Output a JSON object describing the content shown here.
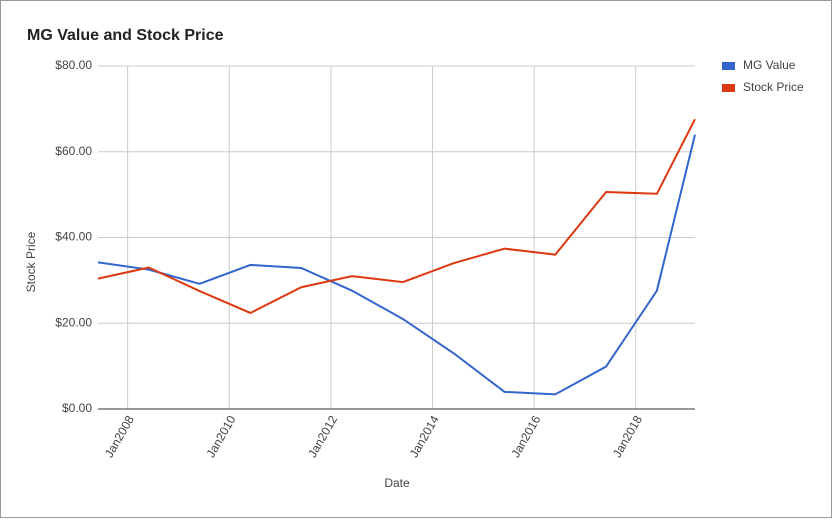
{
  "chart_data": {
    "type": "line",
    "title": "MG Value and Stock Price",
    "x_label": "Date",
    "y_label": "Stock Price",
    "x": [
      "2007-06",
      "2008-06",
      "2009-06",
      "2010-06",
      "2011-06",
      "2012-06",
      "2013-06",
      "2014-06",
      "2015-06",
      "2016-06",
      "2017-06",
      "2018-06",
      "2019-03"
    ],
    "series": [
      {
        "name": "MG Value",
        "color": "#3366cc",
        "values": [
          34.2,
          32.5,
          29.2,
          33.6,
          32.9,
          27.6,
          21.0,
          13.0,
          4.0,
          3.4,
          9.9,
          27.6,
          64.0
        ]
      },
      {
        "name": "Stock Price",
        "color": "#dc3912",
        "values": [
          30.4,
          33.0,
          27.5,
          22.4,
          28.4,
          31.0,
          29.6,
          34.0,
          37.4,
          36.0,
          50.6,
          50.2,
          67.6
        ]
      }
    ],
    "xlim": [
      "2007-06",
      "2019-03"
    ],
    "xticks": [
      {
        "value": "2008-01",
        "label": "Jan2008"
      },
      {
        "value": "2010-01",
        "label": "Jan2010"
      },
      {
        "value": "2012-01",
        "label": "Jan2012"
      },
      {
        "value": "2014-01",
        "label": "Jan2014"
      },
      {
        "value": "2016-01",
        "label": "Jan2016"
      },
      {
        "value": "2018-01",
        "label": "Jan2018"
      }
    ],
    "ylim": [
      0,
      80
    ],
    "yticks": [
      {
        "value": 0,
        "label": "$0.00"
      },
      {
        "value": 20,
        "label": "$20.00"
      },
      {
        "value": 40,
        "label": "$40.00"
      },
      {
        "value": 60,
        "label": "$60.00"
      },
      {
        "value": 80,
        "label": "$80.00"
      }
    ],
    "grid": true,
    "legend": "right"
  }
}
